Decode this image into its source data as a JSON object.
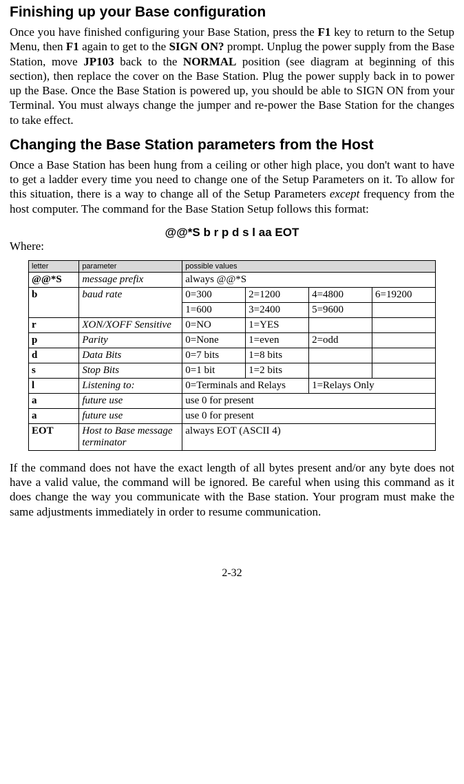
{
  "section1": {
    "heading": "Finishing up your Base configuration",
    "para_parts": [
      {
        "t": "Once you have finished configuring your Base Station, press the "
      },
      {
        "t": "F1",
        "b": true
      },
      {
        "t": " key to return to the Setup Menu, then "
      },
      {
        "t": "F1",
        "b": true
      },
      {
        "t": " again to get to the "
      },
      {
        "t": "SIGN ON?",
        "b": true
      },
      {
        "t": " prompt. Unplug the power supply from the Base Station, move "
      },
      {
        "t": "JP103",
        "b": true
      },
      {
        "t": " back to the "
      },
      {
        "t": "NORMAL",
        "b": true
      },
      {
        "t": " position (see diagram at beginning of this section), then replace the cover on the Base Station.  Plug the power supply back in to power up the Base. Once the Base Station is powered up, you should be able to SIGN ON from your Terminal. You must always change the jumper and re-power the Base Station for the changes to take effect."
      }
    ]
  },
  "section2": {
    "heading": "Changing the Base Station parameters from the Host",
    "para_parts": [
      {
        "t": "Once a Base Station has been hung from a ceiling or other high place, you don't want to have to get a ladder every time you need to change one of the Setup Parameters on it.  To allow for this situation, there is a way to change all of the Setup Parameters "
      },
      {
        "t": "except",
        "i": true
      },
      {
        "t": " frequency from the host computer. The command for the Base Station Setup follows this format:"
      }
    ],
    "command": "@@*S b r p d s l aa EOT",
    "where_label": "Where:"
  },
  "table": {
    "headers": {
      "c1": "letter",
      "c2": "parameter",
      "c3": "possible values"
    },
    "rows": {
      "prefix": {
        "letter": "@@*S",
        "param": "message prefix",
        "value": "always @@*S"
      },
      "baud": {
        "letter": "b",
        "param": "baud rate",
        "r1": {
          "a": "0=300",
          "b": "2=1200",
          "c": "4=4800",
          "d": "6=19200"
        },
        "r2": {
          "a": "1=600",
          "b": "3=2400",
          "c": "5=9600",
          "d": ""
        }
      },
      "xon": {
        "letter": "r",
        "param": "XON/XOFF Sensitive",
        "a": "0=NO",
        "b": "1=YES",
        "c": "",
        "d": ""
      },
      "parity": {
        "letter": "p",
        "param": "Parity",
        "a": "0=None",
        "b": "1=even",
        "c": "2=odd",
        "d": ""
      },
      "databits": {
        "letter": "d",
        "param": "Data Bits",
        "a": "0=7 bits",
        "b": "1=8 bits",
        "c": "",
        "d": ""
      },
      "stopbits": {
        "letter": "s",
        "param": "Stop Bits",
        "a": "0=1 bit",
        "b": "1=2 bits",
        "c": "",
        "d": ""
      },
      "listen": {
        "letter": "l",
        "param": "Listening to:",
        "left": "0=Terminals and Relays",
        "right": "1=Relays Only"
      },
      "future1": {
        "letter": "a",
        "param": "future use",
        "value": "use 0 for present"
      },
      "future2": {
        "letter": "a",
        "param": "future use",
        "value": "use 0 for present"
      },
      "eot": {
        "letter": "EOT",
        "param": "Host to Base message terminator",
        "value": "always EOT (ASCII 4)"
      }
    }
  },
  "closing_para": "If the command does not have the exact length of all bytes present and/or any byte does not have a valid value, the command will be ignored. Be careful when using this command as it does change the way you communicate with the Base station. Your program must make the same adjustments immediately in order to resume communication.",
  "page_number": "2-32"
}
